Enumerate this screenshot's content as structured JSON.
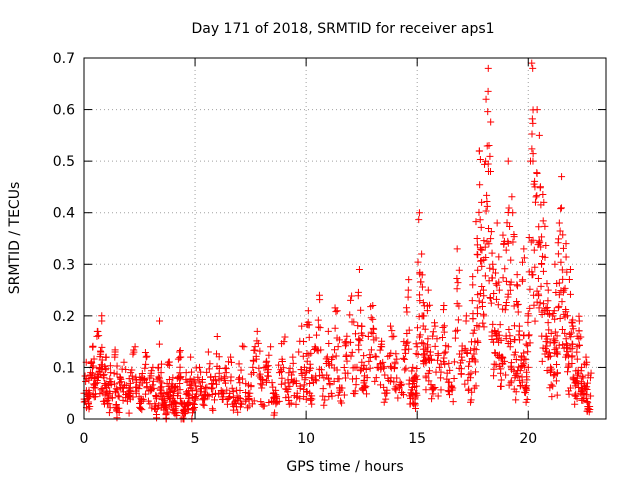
{
  "chart_data": {
    "type": "scatter",
    "title": "Day 171 of 2018, SRMTID for receiver aps1",
    "xlabel": "GPS time / hours",
    "ylabel": "SRMTID / TECUs",
    "xlim": [
      0,
      23.5
    ],
    "ylim": [
      0,
      0.7
    ],
    "x_ticks": [
      0,
      5,
      10,
      15,
      20
    ],
    "y_ticks": [
      0,
      0.1,
      0.2,
      0.3,
      0.4,
      0.5,
      0.6,
      0.7
    ],
    "grid": true,
    "marker": "+",
    "color": "#ff0000",
    "series": [
      {
        "name": "aps1",
        "note": "Representative envelope of the plotted cloud of '+' markers: [hour, SRMTID]",
        "points": [
          [
            0.0,
            0.05
          ],
          [
            0.1,
            0.11
          ],
          [
            0.2,
            0.03
          ],
          [
            0.3,
            0.09
          ],
          [
            0.4,
            0.14
          ],
          [
            0.5,
            0.06
          ],
          [
            0.6,
            0.17
          ],
          [
            0.7,
            0.1
          ],
          [
            0.8,
            0.19
          ],
          [
            0.9,
            0.08
          ],
          [
            1.0,
            0.12
          ],
          [
            1.1,
            0.04
          ],
          [
            1.2,
            0.09
          ],
          [
            1.4,
            0.13
          ],
          [
            1.5,
            0.02
          ],
          [
            1.6,
            0.07
          ],
          [
            1.8,
            0.11
          ],
          [
            2.0,
            0.05
          ],
          [
            2.1,
            0.09
          ],
          [
            2.3,
            0.14
          ],
          [
            2.5,
            0.03
          ],
          [
            2.6,
            0.08
          ],
          [
            2.8,
            0.12
          ],
          [
            3.0,
            0.06
          ],
          [
            3.1,
            0.1
          ],
          [
            3.3,
            0.02
          ],
          [
            3.4,
            0.19
          ],
          [
            3.5,
            0.07
          ],
          [
            3.6,
            0.05
          ],
          [
            3.7,
            0.0
          ],
          [
            3.8,
            0.11
          ],
          [
            3.9,
            0.04
          ],
          [
            4.0,
            0.08
          ],
          [
            4.1,
            0.01
          ],
          [
            4.2,
            0.06
          ],
          [
            4.3,
            0.13
          ],
          [
            4.4,
            0.03
          ],
          [
            4.5,
            0.0
          ],
          [
            4.6,
            0.09
          ],
          [
            4.7,
            0.04
          ],
          [
            4.8,
            0.12
          ],
          [
            4.9,
            0.02
          ],
          [
            5.0,
            0.07
          ],
          [
            5.2,
            0.1
          ],
          [
            5.4,
            0.04
          ],
          [
            5.6,
            0.13
          ],
          [
            5.8,
            0.06
          ],
          [
            6.0,
            0.16
          ],
          [
            6.2,
            0.05
          ],
          [
            6.4,
            0.09
          ],
          [
            6.6,
            0.12
          ],
          [
            6.8,
            0.03
          ],
          [
            7.0,
            0.08
          ],
          [
            7.2,
            0.14
          ],
          [
            7.4,
            0.05
          ],
          [
            7.6,
            0.1
          ],
          [
            7.8,
            0.17
          ],
          [
            8.0,
            0.06
          ],
          [
            8.2,
            0.11
          ],
          [
            8.4,
            0.14
          ],
          [
            8.6,
            0.04
          ],
          [
            8.8,
            0.09
          ],
          [
            9.0,
            0.15
          ],
          [
            9.2,
            0.07
          ],
          [
            9.4,
            0.12
          ],
          [
            9.6,
            0.05
          ],
          [
            9.8,
            0.18
          ],
          [
            10.0,
            0.09
          ],
          [
            10.1,
            0.21
          ],
          [
            10.2,
            0.04
          ],
          [
            10.4,
            0.14
          ],
          [
            10.6,
            0.24
          ],
          [
            10.8,
            0.08
          ],
          [
            11.0,
            0.17
          ],
          [
            11.2,
            0.12
          ],
          [
            11.4,
            0.21
          ],
          [
            11.6,
            0.06
          ],
          [
            11.8,
            0.15
          ],
          [
            12.0,
            0.23
          ],
          [
            12.2,
            0.1
          ],
          [
            12.4,
            0.29
          ],
          [
            12.5,
            0.18
          ],
          [
            12.6,
            0.07
          ],
          [
            12.8,
            0.16
          ],
          [
            13.0,
            0.22
          ],
          [
            13.2,
            0.1
          ],
          [
            13.4,
            0.14
          ],
          [
            13.6,
            0.05
          ],
          [
            13.8,
            0.18
          ],
          [
            14.0,
            0.11
          ],
          [
            14.2,
            0.06
          ],
          [
            14.4,
            0.15
          ],
          [
            14.6,
            0.25
          ],
          [
            14.7,
            0.04
          ],
          [
            14.8,
            0.1
          ],
          [
            14.9,
            0.03
          ],
          [
            15.0,
            0.14
          ],
          [
            15.1,
            0.4
          ],
          [
            15.2,
            0.32
          ],
          [
            15.3,
            0.2
          ],
          [
            15.4,
            0.08
          ],
          [
            15.5,
            0.25
          ],
          [
            15.6,
            0.13
          ],
          [
            15.8,
            0.18
          ],
          [
            16.0,
            0.1
          ],
          [
            16.2,
            0.22
          ],
          [
            16.4,
            0.14
          ],
          [
            16.6,
            0.06
          ],
          [
            16.8,
            0.33
          ],
          [
            17.0,
            0.12
          ],
          [
            17.2,
            0.19
          ],
          [
            17.4,
            0.08
          ],
          [
            17.5,
            0.26
          ],
          [
            17.6,
            0.15
          ],
          [
            17.7,
            0.35
          ],
          [
            17.8,
            0.52
          ],
          [
            17.9,
            0.42
          ],
          [
            18.0,
            0.2
          ],
          [
            18.1,
            0.62
          ],
          [
            18.2,
            0.68
          ],
          [
            18.3,
            0.48
          ],
          [
            18.4,
            0.3
          ],
          [
            18.5,
            0.17
          ],
          [
            18.6,
            0.38
          ],
          [
            18.7,
            0.25
          ],
          [
            18.8,
            0.12
          ],
          [
            18.9,
            0.34
          ],
          [
            19.0,
            0.22
          ],
          [
            19.1,
            0.5
          ],
          [
            19.2,
            0.15
          ],
          [
            19.3,
            0.4
          ],
          [
            19.4,
            0.08
          ],
          [
            19.5,
            0.28
          ],
          [
            19.6,
            0.18
          ],
          [
            19.7,
            0.12
          ],
          [
            19.8,
            0.33
          ],
          [
            19.9,
            0.06
          ],
          [
            20.0,
            0.2
          ],
          [
            20.1,
            0.5
          ],
          [
            20.2,
            0.68
          ],
          [
            20.3,
            0.45
          ],
          [
            20.4,
            0.6
          ],
          [
            20.5,
            0.55
          ],
          [
            20.6,
            0.3
          ],
          [
            20.7,
            0.42
          ],
          [
            20.8,
            0.15
          ],
          [
            20.9,
            0.25
          ],
          [
            21.0,
            0.09
          ],
          [
            21.1,
            0.2
          ],
          [
            21.2,
            0.3
          ],
          [
            21.3,
            0.13
          ],
          [
            21.4,
            0.38
          ],
          [
            21.5,
            0.47
          ],
          [
            21.6,
            0.25
          ],
          [
            21.7,
            0.34
          ],
          [
            21.8,
            0.1
          ],
          [
            21.9,
            0.29
          ],
          [
            22.0,
            0.18
          ],
          [
            22.1,
            0.07
          ],
          [
            22.2,
            0.14
          ],
          [
            22.3,
            0.19
          ],
          [
            22.4,
            0.1
          ],
          [
            22.5,
            0.05
          ],
          [
            22.6,
            0.12
          ],
          [
            22.7,
            0.02
          ],
          [
            22.8,
            0.08
          ]
        ]
      }
    ]
  }
}
